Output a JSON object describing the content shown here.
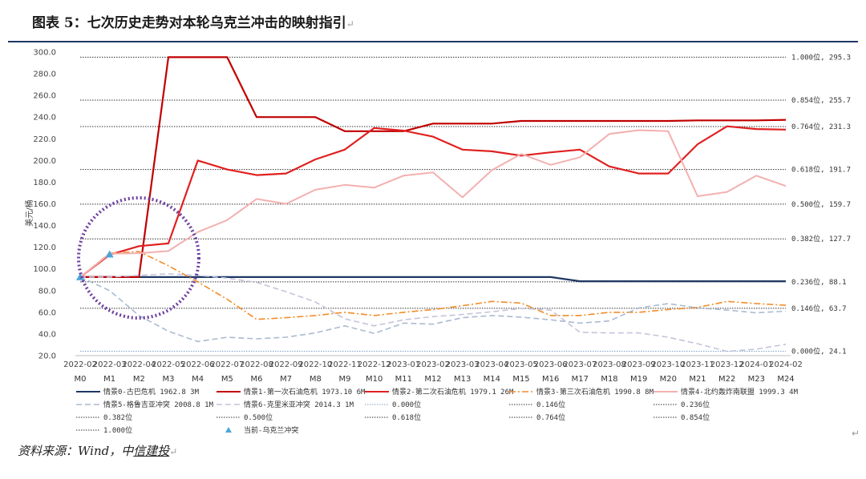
{
  "page": {
    "title": "图表 5：七次历史走势对本轮乌克兰冲击的映射指引",
    "title_mark": "↵",
    "source_prefix": "资料来源：Wind，中",
    "source_underlined": "信建投",
    "source_mark": "↵",
    "trailing_mark": "↵"
  },
  "chart_data": {
    "type": "line",
    "ylabel": "美元/桶",
    "ylim": [
      20,
      300
    ],
    "yticks": [
      "20.0",
      "40.0",
      "60.0",
      "80.0",
      "100.0",
      "120.0",
      "140.0",
      "160.0",
      "180.0",
      "200.0",
      "220.0",
      "240.0",
      "260.0",
      "280.0",
      "300.0"
    ],
    "x_dates": [
      "2022-02",
      "2022-03",
      "2022-04",
      "2022-05",
      "2022-06",
      "2022-07",
      "2022-08",
      "2022-09",
      "2022-10",
      "2022-11",
      "2022-12",
      "2023-01",
      "2023-02",
      "2023-03",
      "2023-04",
      "2023-05",
      "2023-06",
      "2023-07",
      "2023-08",
      "2023-09",
      "2023-10",
      "2023-11",
      "2023-12",
      "2024-01",
      "2024-02"
    ],
    "x_months": [
      "M0",
      "M1",
      "M2",
      "M3",
      "M4",
      "M5",
      "M6",
      "M7",
      "M8",
      "M9",
      "M10",
      "M11",
      "M12",
      "M13",
      "M14",
      "M15",
      "M16",
      "M17",
      "M18",
      "M19",
      "M20",
      "M21",
      "M22",
      "M23",
      "M24"
    ],
    "series": [
      {
        "name": "情景0-古巴危机 1962.8 3M",
        "color": "#1f3864",
        "dash": "solid",
        "width": 2.2,
        "values": [
          92.5,
          92.5,
          92.5,
          92.5,
          92.5,
          92.5,
          92.5,
          92.5,
          92.5,
          92.5,
          92.5,
          92.5,
          92.5,
          92.5,
          92.5,
          92.5,
          92.5,
          88.6,
          88.6,
          88.6,
          88.6,
          88.6,
          88.6,
          88.6,
          88.6
        ]
      },
      {
        "name": "情景1-第一次石油危机 1973.10 6M",
        "color": "#c00000",
        "dash": "solid",
        "width": 2.2,
        "values": [
          92.5,
          92.5,
          92.5,
          295.3,
          295.3,
          295.3,
          240,
          240,
          240,
          227,
          227,
          227,
          234,
          234,
          234,
          236.5,
          236.5,
          236.5,
          236.5,
          236.5,
          236.5,
          237,
          237,
          237,
          237.5
        ]
      },
      {
        "name": "情景2-第二次石油危机 1979.1 26M",
        "color": "#e02020",
        "dash": "solid",
        "width": 2.2,
        "values": [
          92.5,
          113,
          121,
          123.5,
          200,
          191.7,
          186.5,
          188,
          201,
          210,
          230,
          227.5,
          222,
          210,
          208.5,
          204.5,
          207.5,
          210,
          194.5,
          188,
          188,
          215,
          231.5,
          229,
          228.5
        ]
      },
      {
        "name": "情景3-第三次石油危机 1990.8 8M",
        "color": "#f28c28",
        "dash": "dashdot",
        "width": 1.6,
        "values": [
          92.5,
          114.5,
          116,
          103,
          88,
          72,
          53.5,
          55,
          57,
          60,
          57,
          60,
          62.5,
          66,
          70,
          68.5,
          57,
          57,
          60,
          60,
          62.5,
          64.5,
          70,
          68,
          66.5
        ]
      },
      {
        "name": "情景4-北约轰炸南联盟 1999.3 4M",
        "color": "#f4b0b0",
        "dash": "solid",
        "width": 2.0,
        "values": [
          92.5,
          114,
          114.5,
          116.5,
          134,
          145,
          164.5,
          160,
          173,
          177.5,
          175,
          186,
          189,
          166,
          191,
          206,
          196,
          203,
          224.5,
          228,
          227,
          167,
          171,
          186,
          176.5
        ]
      },
      {
        "name": "情景5-格鲁吉亚冲突 2008.8 1M",
        "color": "#aabbd0",
        "dash": "dash",
        "width": 1.6,
        "values": [
          92.5,
          80,
          57,
          42.5,
          33,
          37,
          35.5,
          37,
          41,
          47.5,
          40.5,
          50,
          49,
          55,
          57,
          55.5,
          53,
          50,
          52,
          64,
          68,
          64,
          62,
          59.5,
          61
        ]
      },
      {
        "name": "情景6-克里米亚冲突 2014.3 1M",
        "color": "#c4c4dc",
        "dash": "dash",
        "width": 1.6,
        "values": [
          92.5,
          92.5,
          94,
          95.5,
          94,
          91.5,
          87.5,
          79,
          69.5,
          54,
          47.5,
          53,
          56,
          58,
          60.5,
          63.5,
          62,
          41.5,
          41,
          41,
          37,
          31,
          24,
          26,
          30.5
        ]
      }
    ],
    "fib_levels": [
      {
        "name": "0.000位",
        "label": "0.000位, 24.1",
        "value": 24.1,
        "color": "#7fa3c8"
      },
      {
        "name": "0.146位",
        "label": "0.146位, 63.7",
        "value": 63.7,
        "color": "#333333"
      },
      {
        "name": "0.236位",
        "label": "0.236位, 88.1",
        "value": 88.1,
        "color": "#333333"
      },
      {
        "name": "0.382位",
        "label": "0.382位, 127.7",
        "value": 127.7,
        "color": "#333333"
      },
      {
        "name": "0.500位",
        "label": "0.500位, 159.7",
        "value": 159.7,
        "color": "#333333"
      },
      {
        "name": "0.618位",
        "label": "0.618位, 191.7",
        "value": 191.7,
        "color": "#333333"
      },
      {
        "name": "0.764位",
        "label": "0.764位, 231.3",
        "value": 231.3,
        "color": "#333333"
      },
      {
        "name": "0.854位",
        "label": "0.854位, 255.7",
        "value": 255.7,
        "color": "#333333"
      },
      {
        "name": "1.000位",
        "label": "1.000位, 295.3",
        "value": 295.3,
        "color": "#333333"
      }
    ],
    "current_points": {
      "name": "当前-乌克兰冲突",
      "color": "#4da6d8",
      "values": [
        92.5,
        113.5
      ]
    },
    "legend_placement": "bottom"
  }
}
